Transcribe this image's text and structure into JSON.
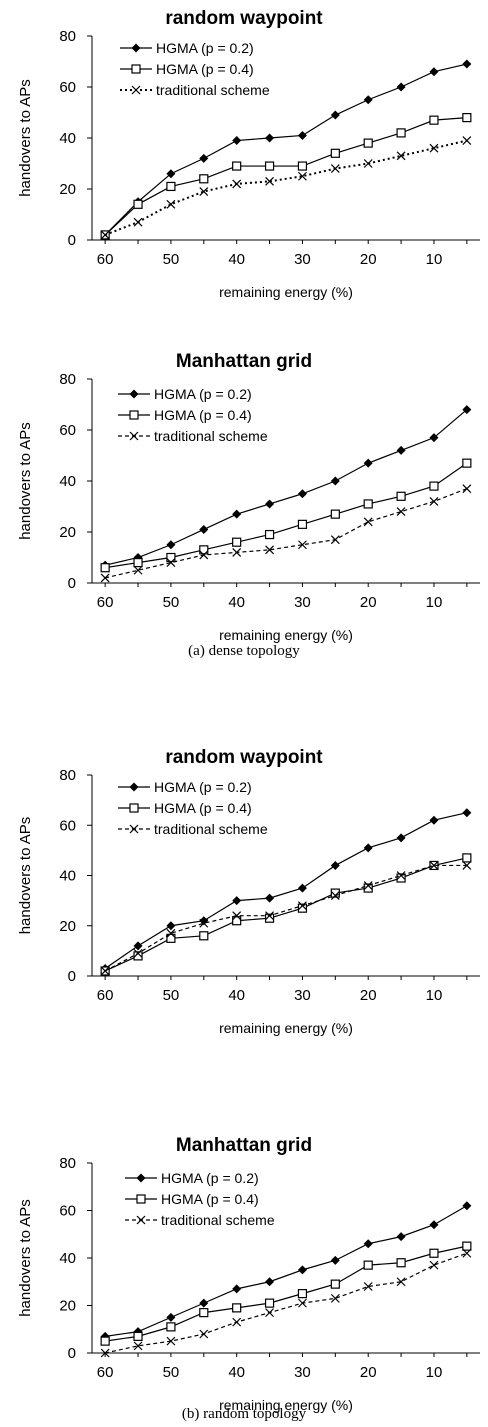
{
  "captions": {
    "dense": "(a) dense topology",
    "random": "(b) random topology"
  },
  "chart_data": [
    {
      "type": "line",
      "title": "random waypoint",
      "xlabel": "remaining energy (%)",
      "ylabel": "handovers to APs",
      "x": [
        60,
        55,
        50,
        45,
        40,
        35,
        30,
        25,
        20,
        15,
        10,
        5
      ],
      "xticks": [
        60,
        50,
        40,
        30,
        20,
        10
      ],
      "xlim": [
        62,
        3
      ],
      "ylim": [
        0,
        80
      ],
      "yticks": [
        0,
        20,
        40,
        60,
        80
      ],
      "legend_position": "top-left",
      "series": [
        {
          "name": "HGMA (p = 0.2)",
          "marker": "diamond",
          "dash": "solid",
          "values": [
            2,
            15,
            26,
            32,
            39,
            40,
            41,
            49,
            55,
            60,
            66,
            69
          ]
        },
        {
          "name": "HGMA (p = 0.4)",
          "marker": "square",
          "dash": "solid",
          "values": [
            2,
            14,
            21,
            24,
            29,
            29,
            29,
            34,
            38,
            42,
            47,
            48
          ]
        },
        {
          "name": "traditional scheme",
          "marker": "x",
          "dash": "dotted",
          "values": [
            2,
            7,
            14,
            19,
            22,
            23,
            25,
            28,
            30,
            33,
            36,
            39
          ]
        }
      ]
    },
    {
      "type": "line",
      "title": "Manhattan grid",
      "xlabel": "remaining energy (%)",
      "ylabel": "handovers to APs",
      "x": [
        60,
        55,
        50,
        45,
        40,
        35,
        30,
        25,
        20,
        15,
        10,
        5
      ],
      "xticks": [
        60,
        50,
        40,
        30,
        20,
        10
      ],
      "xlim": [
        62,
        3
      ],
      "ylim": [
        0,
        80
      ],
      "yticks": [
        0,
        20,
        40,
        60,
        80
      ],
      "legend_position": "top-left",
      "series": [
        {
          "name": "HGMA (p = 0.2)",
          "marker": "diamond",
          "dash": "solid",
          "values": [
            7,
            10,
            15,
            21,
            27,
            31,
            35,
            40,
            47,
            52,
            57,
            68
          ]
        },
        {
          "name": "HGMA (p = 0.4)",
          "marker": "square",
          "dash": "solid",
          "values": [
            6,
            8,
            10,
            13,
            16,
            19,
            23,
            27,
            31,
            34,
            38,
            47
          ]
        },
        {
          "name": "traditional scheme",
          "marker": "x",
          "dash": "dashed",
          "values": [
            2,
            5,
            8,
            11,
            12,
            13,
            15,
            17,
            24,
            28,
            32,
            37
          ]
        }
      ]
    },
    {
      "type": "line",
      "title": "random waypoint",
      "xlabel": "remaining energy (%)",
      "ylabel": "handovers to APs",
      "x": [
        60,
        55,
        50,
        45,
        40,
        35,
        30,
        25,
        20,
        15,
        10,
        5
      ],
      "xticks": [
        60,
        50,
        40,
        30,
        20,
        10
      ],
      "xlim": [
        62,
        3
      ],
      "ylim": [
        0,
        80
      ],
      "yticks": [
        0,
        20,
        40,
        60,
        80
      ],
      "legend_position": "top-left",
      "series": [
        {
          "name": "HGMA (p = 0.2)",
          "marker": "diamond",
          "dash": "solid",
          "values": [
            3,
            12,
            20,
            22,
            30,
            31,
            35,
            44,
            51,
            55,
            62,
            65
          ]
        },
        {
          "name": "HGMA (p = 0.4)",
          "marker": "square",
          "dash": "solid",
          "values": [
            2,
            8,
            15,
            16,
            22,
            23,
            27,
            33,
            35,
            39,
            44,
            47
          ]
        },
        {
          "name": "traditional scheme",
          "marker": "x",
          "dash": "dashed",
          "values": [
            2,
            9,
            17,
            21,
            24,
            24,
            28,
            32,
            36,
            40,
            44,
            44
          ]
        }
      ]
    },
    {
      "type": "line",
      "title": "Manhattan grid",
      "xlabel": "remaining energy (%)",
      "ylabel": "handovers to APs",
      "x": [
        60,
        55,
        50,
        45,
        40,
        35,
        30,
        25,
        20,
        15,
        10,
        5
      ],
      "xticks": [
        60,
        50,
        40,
        30,
        20,
        10
      ],
      "xlim": [
        62,
        3
      ],
      "ylim": [
        0,
        80
      ],
      "yticks": [
        0,
        20,
        40,
        60,
        80
      ],
      "legend_position": "top-left",
      "series": [
        {
          "name": "HGMA (p = 0.2)",
          "marker": "diamond",
          "dash": "solid",
          "values": [
            7,
            9,
            15,
            21,
            27,
            30,
            35,
            39,
            46,
            49,
            54,
            62
          ]
        },
        {
          "name": "HGMA (p = 0.4)",
          "marker": "square",
          "dash": "solid",
          "values": [
            5,
            7,
            11,
            17,
            19,
            21,
            25,
            29,
            37,
            38,
            42,
            45
          ]
        },
        {
          "name": "traditional scheme",
          "marker": "x",
          "dash": "dashed",
          "values": [
            0,
            3,
            5,
            8,
            13,
            17,
            21,
            23,
            28,
            30,
            37,
            42
          ]
        }
      ]
    }
  ]
}
